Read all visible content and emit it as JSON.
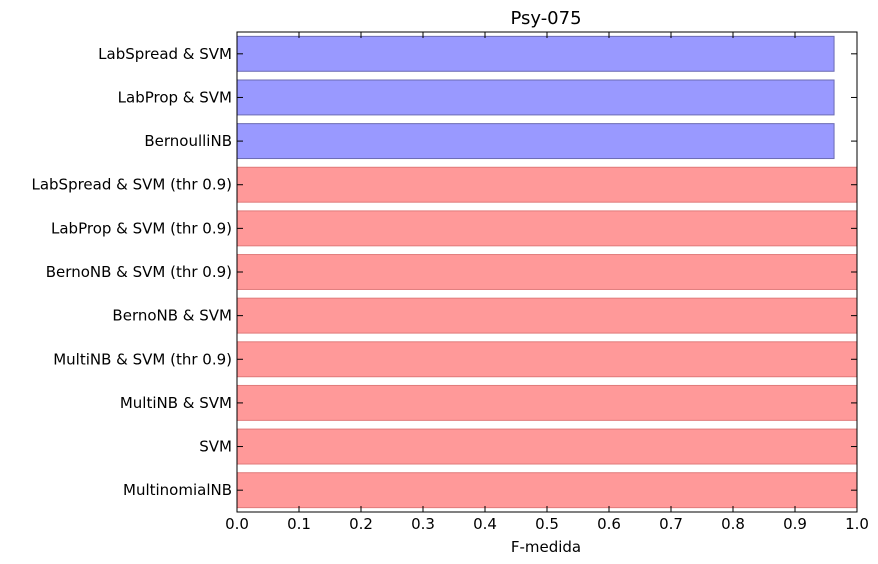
{
  "chart_data": {
    "type": "bar",
    "orientation": "horizontal",
    "title": "Psy-075",
    "xlabel": "F-medida",
    "ylabel": "",
    "xlim": [
      0.0,
      1.0
    ],
    "xticks": [
      "0.0",
      "0.1",
      "0.2",
      "0.3",
      "0.4",
      "0.5",
      "0.6",
      "0.7",
      "0.8",
      "0.9",
      "1.0"
    ],
    "grid": false,
    "categories": [
      "LabSpread & SVM",
      "LabProp & SVM",
      "BernoulliNB",
      "LabSpread & SVM (thr 0.9)",
      "LabProp & SVM (thr 0.9)",
      "BernoNB & SVM (thr 0.9)",
      "BernoNB & SVM",
      "MultiNB & SVM (thr 0.9)",
      "MultiNB & SVM",
      "SVM",
      "MultinomialNB"
    ],
    "values": [
      0.963,
      0.963,
      0.963,
      1.0,
      1.0,
      1.0,
      1.0,
      1.0,
      1.0,
      1.0,
      1.0
    ],
    "bar_colors": [
      "#9999ff",
      "#9999ff",
      "#9999ff",
      "#ff9999",
      "#ff9999",
      "#ff9999",
      "#ff9999",
      "#ff9999",
      "#ff9999",
      "#ff9999",
      "#ff9999"
    ],
    "bar_edge_colors": [
      "#6b6bb3",
      "#6b6bb3",
      "#6b6bb3",
      "#e07a7a",
      "#e07a7a",
      "#e07a7a",
      "#e07a7a",
      "#e07a7a",
      "#e07a7a",
      "#e07a7a",
      "#e07a7a"
    ]
  }
}
